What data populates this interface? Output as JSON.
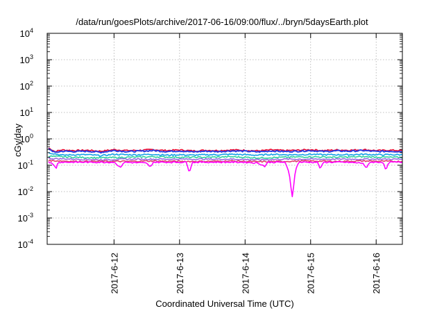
{
  "chart_data": {
    "type": "line",
    "title": "/data/run/goesPlots/archive/2017-06-16/09:00/flux/../bryn/5daysEarth.plot",
    "xlabel": "Coordinated Universal Time (UTC)",
    "ylabel": "cGy/day",
    "x_tick_labels": [
      "2017-6-12",
      "2017-6-13",
      "2017-6-14",
      "2017-6-15",
      "2017-6-16"
    ],
    "x_tick_values": [
      1,
      2,
      3,
      4,
      5
    ],
    "xlim": [
      -0.02,
      5.4
    ],
    "y_scale": "log",
    "ylim": [
      0.0001,
      10000
    ],
    "y_ticks": [
      {
        "value": 0.0001,
        "base": "10",
        "exp": "-4"
      },
      {
        "value": 0.001,
        "base": "10",
        "exp": "-3"
      },
      {
        "value": 0.01,
        "base": "10",
        "exp": "-2"
      },
      {
        "value": 0.1,
        "base": "10",
        "exp": "-1"
      },
      {
        "value": 1,
        "base": "10",
        "exp": "0"
      },
      {
        "value": 10,
        "base": "10",
        "exp": "1"
      },
      {
        "value": 100,
        "base": "10",
        "exp": "2"
      },
      {
        "value": 1000,
        "base": "10",
        "exp": "3"
      },
      {
        "value": 10000,
        "base": "10",
        "exp": "4"
      }
    ],
    "grid": true,
    "legend": "none",
    "series": [
      {
        "color": "#e8002a",
        "base": 0.37,
        "points": [
          [
            0.0,
            0.45
          ],
          [
            0.1,
            0.33
          ],
          [
            0.2,
            0.38
          ],
          [
            0.4,
            0.36
          ],
          [
            0.6,
            0.37
          ],
          [
            0.8,
            0.34
          ],
          [
            1.0,
            0.39
          ],
          [
            1.2,
            0.36
          ],
          [
            1.4,
            0.37
          ],
          [
            1.6,
            0.39
          ],
          [
            1.8,
            0.36
          ],
          [
            2.0,
            0.38
          ],
          [
            2.2,
            0.35
          ],
          [
            2.4,
            0.37
          ],
          [
            2.6,
            0.36
          ],
          [
            2.8,
            0.38
          ],
          [
            3.0,
            0.37
          ],
          [
            3.2,
            0.35
          ],
          [
            3.4,
            0.38
          ],
          [
            3.6,
            0.36
          ],
          [
            3.8,
            0.37
          ],
          [
            4.0,
            0.39
          ],
          [
            4.2,
            0.36
          ],
          [
            4.4,
            0.38
          ],
          [
            4.6,
            0.37
          ],
          [
            4.8,
            0.39
          ],
          [
            5.0,
            0.36
          ],
          [
            5.2,
            0.37
          ],
          [
            5.4,
            0.36
          ]
        ]
      },
      {
        "color": "#2a3ce0",
        "base": 0.33,
        "points": [
          [
            0.0,
            0.42
          ],
          [
            0.1,
            0.3
          ],
          [
            0.2,
            0.34
          ],
          [
            0.4,
            0.33
          ],
          [
            0.6,
            0.34
          ],
          [
            0.8,
            0.31
          ],
          [
            1.0,
            0.36
          ],
          [
            1.2,
            0.33
          ],
          [
            1.4,
            0.34
          ],
          [
            1.6,
            0.36
          ],
          [
            1.8,
            0.33
          ],
          [
            2.0,
            0.35
          ],
          [
            2.2,
            0.32
          ],
          [
            2.4,
            0.34
          ],
          [
            2.6,
            0.33
          ],
          [
            2.8,
            0.35
          ],
          [
            3.0,
            0.34
          ],
          [
            3.2,
            0.32
          ],
          [
            3.4,
            0.35
          ],
          [
            3.6,
            0.33
          ],
          [
            3.8,
            0.34
          ],
          [
            4.0,
            0.36
          ],
          [
            4.2,
            0.33
          ],
          [
            4.4,
            0.35
          ],
          [
            4.6,
            0.34
          ],
          [
            4.8,
            0.36
          ],
          [
            5.0,
            0.33
          ],
          [
            5.2,
            0.34
          ],
          [
            5.4,
            0.33
          ]
        ]
      },
      {
        "color": "#13a0e6",
        "base": 0.25,
        "points": [
          [
            0.0,
            0.3
          ],
          [
            0.2,
            0.24
          ],
          [
            0.4,
            0.25
          ],
          [
            0.6,
            0.25
          ],
          [
            0.8,
            0.23
          ],
          [
            1.0,
            0.26
          ],
          [
            1.2,
            0.25
          ],
          [
            1.4,
            0.25
          ],
          [
            1.6,
            0.26
          ],
          [
            1.8,
            0.24
          ],
          [
            2.0,
            0.25
          ],
          [
            2.2,
            0.24
          ],
          [
            2.4,
            0.25
          ],
          [
            2.6,
            0.25
          ],
          [
            2.8,
            0.26
          ],
          [
            3.0,
            0.25
          ],
          [
            3.2,
            0.24
          ],
          [
            3.4,
            0.26
          ],
          [
            3.6,
            0.25
          ],
          [
            3.8,
            0.25
          ],
          [
            4.0,
            0.26
          ],
          [
            4.2,
            0.25
          ],
          [
            4.4,
            0.25
          ],
          [
            4.6,
            0.25
          ],
          [
            4.8,
            0.26
          ],
          [
            5.0,
            0.25
          ],
          [
            5.2,
            0.25
          ],
          [
            5.4,
            0.25
          ]
        ]
      },
      {
        "color": "#2fd0a0",
        "base": 0.2,
        "points": [
          [
            0.0,
            0.22
          ],
          [
            0.4,
            0.2
          ],
          [
            0.8,
            0.19
          ],
          [
            1.2,
            0.2
          ],
          [
            1.6,
            0.21
          ],
          [
            2.0,
            0.2
          ],
          [
            2.4,
            0.2
          ],
          [
            2.8,
            0.21
          ],
          [
            3.2,
            0.19
          ],
          [
            3.6,
            0.2
          ],
          [
            4.0,
            0.21
          ],
          [
            4.4,
            0.2
          ],
          [
            4.8,
            0.21
          ],
          [
            5.2,
            0.2
          ],
          [
            5.4,
            0.2
          ]
        ]
      },
      {
        "color": "#9a6adf",
        "base": 0.17,
        "points": [
          [
            0.0,
            0.18
          ],
          [
            0.4,
            0.17
          ],
          [
            0.8,
            0.16
          ],
          [
            1.2,
            0.17
          ],
          [
            1.6,
            0.17
          ],
          [
            2.0,
            0.17
          ],
          [
            2.4,
            0.17
          ],
          [
            2.8,
            0.17
          ],
          [
            3.2,
            0.16
          ],
          [
            3.6,
            0.17
          ],
          [
            4.0,
            0.17
          ],
          [
            4.4,
            0.17
          ],
          [
            4.8,
            0.17
          ],
          [
            5.2,
            0.17
          ],
          [
            5.4,
            0.17
          ]
        ]
      },
      {
        "color": "#e33a6b",
        "base": 0.14,
        "points": [
          [
            0.0,
            0.15
          ],
          [
            0.4,
            0.14
          ],
          [
            0.8,
            0.14
          ],
          [
            1.2,
            0.14
          ],
          [
            1.6,
            0.145
          ],
          [
            2.0,
            0.14
          ],
          [
            2.4,
            0.14
          ],
          [
            2.8,
            0.145
          ],
          [
            3.2,
            0.135
          ],
          [
            3.6,
            0.14
          ],
          [
            4.0,
            0.145
          ],
          [
            4.4,
            0.14
          ],
          [
            4.8,
            0.145
          ],
          [
            5.2,
            0.14
          ],
          [
            5.4,
            0.14
          ]
        ]
      },
      {
        "color": "#ff00ff",
        "base": 0.13,
        "points": [
          [
            0.0,
            0.14
          ],
          [
            0.12,
            0.08
          ],
          [
            0.15,
            0.13
          ],
          [
            0.5,
            0.13
          ],
          [
            1.0,
            0.13
          ],
          [
            1.1,
            0.08
          ],
          [
            1.15,
            0.13
          ],
          [
            1.5,
            0.12
          ],
          [
            1.55,
            0.08
          ],
          [
            1.6,
            0.13
          ],
          [
            2.1,
            0.13
          ],
          [
            2.15,
            0.05
          ],
          [
            2.2,
            0.13
          ],
          [
            2.5,
            0.13
          ],
          [
            2.8,
            0.13
          ],
          [
            3.0,
            0.13
          ],
          [
            3.2,
            0.12
          ],
          [
            3.3,
            0.09
          ],
          [
            3.35,
            0.13
          ],
          [
            3.6,
            0.13
          ],
          [
            3.7,
            0.015
          ],
          [
            3.73,
            0.002
          ],
          [
            3.77,
            0.06
          ],
          [
            3.82,
            0.13
          ],
          [
            4.1,
            0.13
          ],
          [
            4.15,
            0.07
          ],
          [
            4.2,
            0.13
          ],
          [
            4.5,
            0.13
          ],
          [
            4.8,
            0.12
          ],
          [
            4.85,
            0.07
          ],
          [
            4.9,
            0.13
          ],
          [
            5.1,
            0.13
          ],
          [
            5.15,
            0.06
          ],
          [
            5.2,
            0.13
          ],
          [
            5.4,
            0.13
          ]
        ]
      }
    ]
  }
}
